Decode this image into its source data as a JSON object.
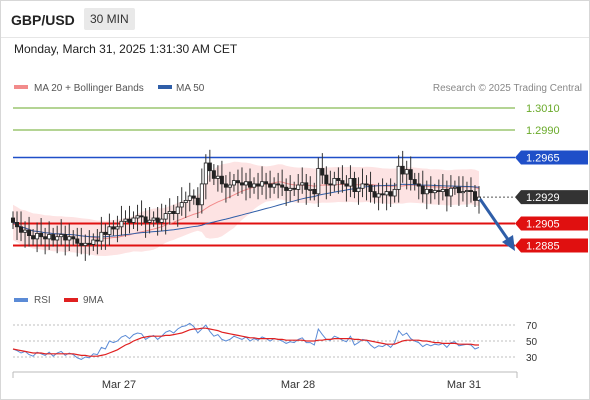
{
  "header": {
    "symbol": "GBP/USD",
    "timeframe": "30 MIN"
  },
  "timestamp": "Monday, March 31, 2025 1:31:30 AM CET",
  "legend": {
    "items": [
      {
        "label": "MA 20 + Bollinger Bands",
        "color": "#f28b8b"
      },
      {
        "label": "MA 50",
        "color": "#2f5ea8"
      }
    ],
    "copyright": "Research © 2025 Trading Central"
  },
  "rsi_legend": {
    "items": [
      {
        "label": "RSI",
        "color": "#5b8bd6"
      },
      {
        "label": "9MA",
        "color": "#e02020"
      }
    ]
  },
  "levels": [
    {
      "value": "1.3010",
      "kind": "resistance",
      "color": "#6aaa2a"
    },
    {
      "value": "1.2990",
      "kind": "resistance",
      "color": "#6aaa2a"
    },
    {
      "value": "1.2965",
      "kind": "pivot",
      "color": "#1f4fc8"
    },
    {
      "value": "1.2929",
      "kind": "last",
      "color": "#333333"
    },
    {
      "value": "1.2905",
      "kind": "support",
      "color": "#e01010"
    },
    {
      "value": "1.2885",
      "kind": "support",
      "color": "#e01010"
    }
  ],
  "rsi_scale": [
    "70",
    "50",
    "30"
  ],
  "x_axis": [
    "Mar 27",
    "Mar 28",
    "Mar 31"
  ],
  "chart_data": [
    {
      "type": "candlestick",
      "title": "",
      "ylim": [
        1.287,
        1.302
      ],
      "x": [
        0,
        1,
        2,
        3,
        4,
        5,
        6,
        7,
        8,
        9,
        10,
        11,
        12,
        13,
        14,
        15,
        16,
        17,
        18,
        19,
        20,
        21,
        22,
        23,
        24,
        25,
        26,
        27,
        28,
        29,
        30,
        31,
        32,
        33,
        34,
        35,
        36,
        37,
        38,
        39,
        40,
        41,
        42,
        43,
        44,
        45,
        46,
        47,
        48,
        49,
        50,
        51,
        52,
        53,
        54,
        55,
        56,
        57,
        58,
        59,
        60,
        61,
        62,
        63,
        64,
        65,
        66,
        67,
        68,
        69,
        70,
        71,
        72,
        73,
        74,
        75,
        76,
        77,
        78,
        79,
        80,
        81,
        82,
        83,
        84,
        85,
        86,
        87,
        88,
        89,
        90,
        91,
        92,
        93,
        94,
        95,
        96,
        97,
        98,
        99,
        100,
        101,
        102,
        103,
        104,
        105,
        106,
        107,
        108,
        109,
        110,
        111,
        112,
        113,
        114,
        115,
        116
      ],
      "close": [
        1.2906,
        1.2902,
        1.2897,
        1.2899,
        1.2894,
        1.2891,
        1.2896,
        1.2893,
        1.2891,
        1.2895,
        1.289,
        1.2893,
        1.2895,
        1.289,
        1.2893,
        1.2891,
        1.2887,
        1.2885,
        1.2887,
        1.2886,
        1.289,
        1.2889,
        1.2897,
        1.2895,
        1.2902,
        1.29,
        1.2902,
        1.2907,
        1.2909,
        1.2906,
        1.291,
        1.2912,
        1.2911,
        1.2906,
        1.2908,
        1.291,
        1.2906,
        1.2909,
        1.2914,
        1.2916,
        1.2914,
        1.292,
        1.2924,
        1.2926,
        1.293,
        1.2928,
        1.2922,
        1.2941,
        1.296,
        1.2953,
        1.2946,
        1.2948,
        1.2941,
        1.2938,
        1.294,
        1.2944,
        1.2942,
        1.294,
        1.2943,
        1.2938,
        1.2941,
        1.2939,
        1.2943,
        1.2941,
        1.2938,
        1.2941,
        1.294,
        1.2938,
        1.2935,
        1.2937,
        1.2936,
        1.294,
        1.2942,
        1.2936,
        1.2936,
        1.2932,
        1.2955,
        1.2949,
        1.2941,
        1.294,
        1.2946,
        1.2944,
        1.2941,
        1.2939,
        1.2946,
        1.2934,
        1.2937,
        1.2941,
        1.294,
        1.2934,
        1.2929,
        1.2932,
        1.2931,
        1.2934,
        1.293,
        1.2936,
        1.2957,
        1.295,
        1.2954,
        1.2945,
        1.2941,
        1.2939,
        1.2932,
        1.2936,
        1.2933,
        1.2935,
        1.2934,
        1.2936,
        1.293,
        1.2937,
        1.2938,
        1.2933,
        1.2934,
        1.2935,
        1.2934,
        1.2926,
        1.2929
      ],
      "ma20_label": "MA 20 + Bollinger Bands",
      "ma50_label": "MA 50"
    },
    {
      "type": "line",
      "title": "",
      "ylim": [
        15,
        85
      ],
      "y_ticks": [
        70,
        50,
        30
      ],
      "series": [
        {
          "name": "RSI",
          "values": [
            40,
            38,
            35,
            37,
            33,
            31,
            36,
            34,
            32,
            36,
            31,
            35,
            37,
            32,
            35,
            33,
            29,
            27,
            30,
            29,
            34,
            33,
            42,
            40,
            50,
            48,
            50,
            55,
            57,
            53,
            58,
            60,
            59,
            52,
            55,
            57,
            52,
            56,
            61,
            63,
            60,
            65,
            68,
            69,
            72,
            68,
            60,
            65,
            70,
            62,
            56,
            58,
            52,
            50,
            52,
            56,
            54,
            52,
            55,
            50,
            53,
            51,
            55,
            53,
            50,
            53,
            52,
            50,
            47,
            49,
            48,
            52,
            54,
            48,
            48,
            45,
            65,
            58,
            52,
            51,
            56,
            54,
            51,
            49,
            56,
            45,
            48,
            52,
            51,
            45,
            41,
            44,
            43,
            46,
            42,
            48,
            63,
            57,
            60,
            53,
            50,
            48,
            43,
            46,
            44,
            46,
            45,
            47,
            42,
            48,
            49,
            44,
            45,
            46,
            45,
            40,
            42
          ]
        },
        {
          "name": "9MA",
          "values": [
            40,
            39,
            38,
            37,
            36,
            35,
            35,
            35,
            34,
            34,
            34,
            34,
            34,
            34,
            34,
            34,
            33,
            32,
            32,
            31,
            31,
            31,
            32,
            33,
            35,
            37,
            39,
            42,
            45,
            47,
            50,
            52,
            54,
            55,
            56,
            56,
            56,
            56,
            57,
            57,
            58,
            59,
            60,
            62,
            64,
            65,
            65,
            66,
            66,
            65,
            64,
            63,
            61,
            60,
            59,
            58,
            57,
            56,
            55,
            54,
            54,
            53,
            53,
            53,
            53,
            53,
            52,
            52,
            51,
            51,
            51,
            51,
            51,
            50,
            50,
            50,
            51,
            51,
            52,
            52,
            53,
            53,
            53,
            53,
            53,
            52,
            52,
            51,
            51,
            50,
            49,
            48,
            47,
            46,
            46,
            46,
            48,
            50,
            51,
            51,
            51,
            51,
            50,
            50,
            49,
            48,
            48,
            47,
            47,
            47,
            47,
            46,
            46,
            46,
            46,
            45,
            45
          ]
        }
      ]
    }
  ]
}
